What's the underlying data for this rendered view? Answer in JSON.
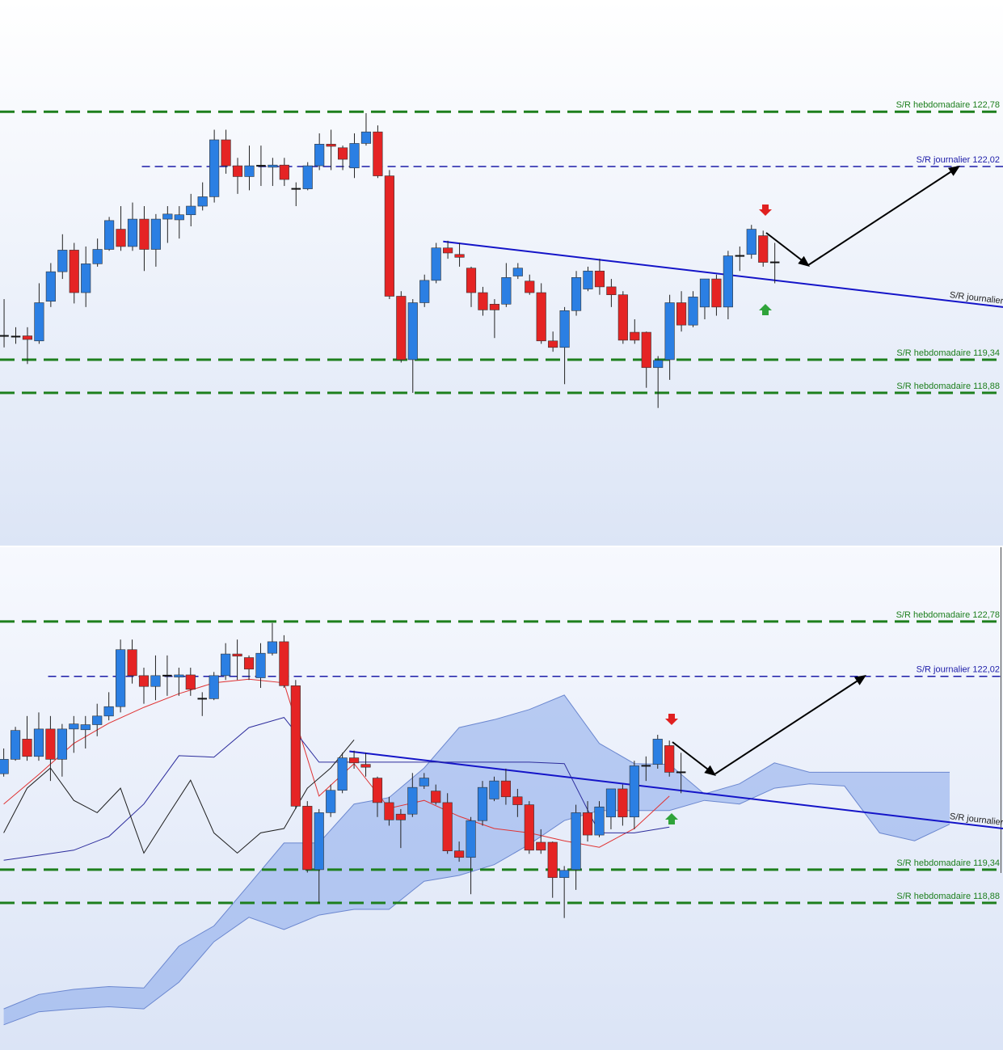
{
  "chart_data": [
    {
      "type": "candlestick",
      "x": [
        1,
        2,
        3,
        4,
        5,
        6,
        7,
        8,
        9,
        10,
        11,
        12,
        13,
        14,
        15,
        16,
        17,
        18,
        19,
        20,
        21,
        22,
        23,
        24,
        25,
        26,
        27,
        28,
        29,
        30,
        31,
        32,
        33,
        34,
        35,
        36,
        37,
        38,
        39,
        40,
        41,
        42,
        43,
        44,
        45,
        46,
        47,
        48,
        49,
        50,
        51,
        52,
        53,
        54,
        55,
        56,
        57,
        58,
        59,
        60,
        61,
        62,
        63,
        64,
        65,
        66,
        67
      ],
      "open": [
        119.67,
        119.66,
        119.67,
        119.6,
        120.15,
        120.56,
        120.86,
        120.27,
        120.67,
        120.87,
        121.15,
        120.91,
        121.29,
        120.87,
        121.29,
        121.28,
        121.35,
        121.47,
        121.6,
        122.39,
        122.03,
        121.88,
        122.03,
        122.01,
        122.04,
        121.71,
        121.71,
        122.03,
        122.33,
        122.28,
        122.0,
        122.34,
        122.5,
        121.89,
        120.22,
        119.34,
        120.13,
        120.44,
        120.89,
        120.8,
        120.61,
        120.27,
        120.11,
        120.11,
        120.5,
        120.43,
        120.27,
        119.6,
        119.51,
        120.02,
        120.32,
        120.57,
        120.35,
        120.24,
        119.72,
        119.72,
        119.23,
        119.34,
        120.13,
        119.82,
        120.07,
        120.46,
        120.07,
        120.78,
        120.8,
        121.06,
        120.69
      ],
      "high": [
        120.18,
        119.79,
        119.79,
        120.4,
        120.68,
        121.08,
        120.96,
        120.91,
        121.02,
        121.32,
        121.47,
        121.52,
        121.47,
        121.36,
        121.47,
        121.47,
        121.64,
        121.8,
        122.53,
        122.53,
        122.14,
        122.31,
        122.31,
        122.14,
        122.14,
        121.8,
        122.08,
        122.48,
        122.53,
        122.31,
        122.48,
        122.76,
        122.59,
        121.97,
        120.29,
        120.18,
        120.52,
        120.96,
        120.99,
        120.96,
        120.63,
        120.35,
        120.18,
        120.68,
        120.68,
        120.52,
        120.4,
        119.73,
        120.07,
        120.57,
        120.63,
        120.74,
        120.46,
        120.29,
        119.9,
        119.73,
        119.39,
        120.24,
        120.29,
        120.29,
        120.46,
        120.52,
        120.85,
        120.91,
        121.21,
        121.13,
        120.96
      ],
      "low": [
        119.51,
        119.56,
        119.28,
        119.56,
        120.07,
        120.46,
        120.12,
        120.07,
        120.63,
        120.85,
        120.85,
        120.85,
        120.57,
        120.63,
        120.96,
        121.02,
        121.19,
        121.41,
        121.52,
        121.92,
        121.64,
        121.69,
        121.75,
        121.75,
        121.75,
        121.47,
        121.69,
        121.97,
        121.97,
        121.97,
        121.86,
        122.31,
        121.86,
        120.18,
        119.3,
        118.88,
        120.07,
        120.4,
        120.74,
        120.63,
        120.07,
        119.95,
        119.64,
        120.07,
        120.46,
        120.24,
        119.56,
        119.45,
        119.0,
        119.95,
        120.29,
        120.24,
        120.07,
        119.56,
        119.56,
        118.95,
        118.67,
        119.06,
        119.73,
        119.79,
        119.9,
        119.95,
        119.9,
        120.57,
        120.74,
        120.63,
        120.4
      ],
      "close": [
        119.67,
        119.66,
        119.62,
        120.13,
        120.56,
        120.86,
        120.27,
        120.67,
        120.87,
        121.27,
        120.91,
        121.29,
        120.87,
        121.29,
        121.36,
        121.35,
        121.47,
        121.6,
        122.39,
        122.03,
        121.88,
        122.03,
        122.03,
        122.04,
        121.84,
        121.71,
        122.03,
        122.33,
        122.3,
        122.12,
        122.34,
        122.5,
        121.89,
        120.22,
        119.34,
        120.13,
        120.44,
        120.89,
        120.82,
        120.76,
        120.27,
        120.03,
        120.03,
        120.48,
        120.61,
        120.27,
        119.6,
        119.51,
        120.02,
        120.48,
        120.57,
        120.35,
        120.24,
        119.61,
        119.61,
        119.23,
        119.33,
        120.13,
        119.82,
        120.21,
        120.46,
        120.07,
        120.78,
        120.78,
        121.15,
        120.69,
        120.69
      ],
      "up_color": "#2b7fe3",
      "down_color": "#e52424",
      "xlim": [
        0.65,
        86.54
      ],
      "ylim": [
        116.76,
        124.33
      ],
      "levels": [
        {
          "value": 122.78,
          "label": "S/R hebdomadaire 122,78",
          "color": "#1d7f1d",
          "style": "heavy-dashed"
        },
        {
          "value": 122.02,
          "label": "S/R journalier 122,02",
          "color": "#1c1ca8",
          "style": "dashed",
          "from": 12.8
        },
        {
          "value": 119.34,
          "label": "S/R hebdomadaire 119,34",
          "color": "#1d7f1d",
          "style": "heavy-dashed"
        },
        {
          "value": 118.88,
          "label": "S/R hebdomadaire 118,88",
          "color": "#1d7f1d",
          "style": "heavy-dashed"
        }
      ],
      "trendline": {
        "label": "S/R journalier",
        "x": [
          38.6,
          86.54
        ],
        "values": [
          120.98,
          120.07
        ],
        "color": "#1414c8"
      }
    },
    {
      "type": "candlestick",
      "x": [
        9,
        10,
        11,
        12,
        13,
        14,
        15,
        16,
        17,
        18,
        19,
        20,
        21,
        22,
        23,
        24,
        25,
        26,
        27,
        28,
        29,
        30,
        31,
        32,
        33,
        34,
        35,
        36,
        37,
        38,
        39,
        40,
        41,
        42,
        43,
        44,
        45,
        46,
        47,
        48,
        49,
        50,
        51,
        52,
        53,
        54,
        55,
        56,
        57,
        58,
        59,
        60,
        61,
        62,
        63,
        64,
        65,
        66,
        67
      ],
      "open": [
        120.67,
        120.87,
        121.15,
        120.91,
        121.29,
        120.87,
        121.29,
        121.28,
        121.35,
        121.47,
        121.6,
        122.39,
        122.03,
        121.88,
        122.03,
        122.01,
        122.04,
        121.71,
        121.71,
        122.03,
        122.33,
        122.28,
        122.0,
        122.34,
        122.5,
        121.89,
        120.22,
        119.34,
        120.13,
        120.44,
        120.89,
        120.8,
        120.61,
        120.27,
        120.11,
        120.11,
        120.5,
        120.43,
        120.27,
        119.6,
        119.51,
        120.02,
        120.32,
        120.57,
        120.35,
        120.24,
        119.72,
        119.72,
        119.23,
        119.34,
        120.13,
        119.82,
        120.07,
        120.46,
        120.07,
        120.78,
        120.8,
        121.06,
        120.69
      ],
      "high": [
        121.02,
        121.32,
        121.47,
        121.52,
        121.47,
        121.36,
        121.47,
        121.47,
        121.64,
        121.8,
        122.53,
        122.53,
        122.14,
        122.31,
        122.31,
        122.14,
        122.14,
        121.8,
        122.08,
        122.48,
        122.53,
        122.31,
        122.48,
        122.76,
        122.59,
        121.97,
        120.29,
        120.18,
        120.52,
        120.96,
        120.99,
        120.96,
        120.63,
        120.35,
        120.18,
        120.68,
        120.68,
        120.52,
        120.4,
        119.73,
        120.07,
        120.57,
        120.63,
        120.74,
        120.46,
        120.29,
        119.9,
        119.73,
        119.39,
        120.24,
        120.29,
        120.29,
        120.46,
        120.52,
        120.85,
        120.91,
        121.21,
        121.13,
        120.96
      ],
      "low": [
        120.63,
        120.85,
        120.85,
        120.85,
        120.57,
        120.63,
        120.96,
        121.02,
        121.19,
        121.41,
        121.52,
        121.92,
        121.64,
        121.69,
        121.75,
        121.75,
        121.75,
        121.47,
        121.69,
        121.97,
        121.97,
        121.97,
        121.86,
        122.31,
        121.86,
        120.18,
        119.3,
        118.88,
        120.07,
        120.4,
        120.74,
        120.63,
        120.07,
        119.95,
        119.64,
        120.07,
        120.46,
        120.24,
        119.56,
        119.45,
        119.0,
        119.95,
        120.29,
        120.24,
        120.07,
        119.56,
        119.56,
        118.95,
        118.67,
        119.06,
        119.73,
        119.79,
        119.9,
        119.95,
        119.9,
        120.57,
        120.74,
        120.63,
        120.4
      ],
      "close": [
        120.87,
        121.27,
        120.91,
        121.29,
        120.87,
        121.29,
        121.36,
        121.35,
        121.47,
        121.6,
        122.39,
        122.03,
        121.88,
        122.03,
        122.03,
        122.04,
        121.84,
        121.71,
        122.03,
        122.33,
        122.3,
        122.12,
        122.34,
        122.5,
        121.89,
        120.22,
        119.34,
        120.13,
        120.44,
        120.89,
        120.82,
        120.76,
        120.27,
        120.03,
        120.03,
        120.48,
        120.61,
        120.27,
        119.6,
        119.51,
        120.02,
        120.48,
        120.57,
        120.35,
        120.24,
        119.61,
        119.61,
        119.23,
        119.33,
        120.13,
        119.82,
        120.21,
        120.46,
        120.07,
        120.78,
        120.78,
        121.15,
        120.69,
        120.69
      ],
      "up_color": "#2b7fe3",
      "down_color": "#e52424",
      "xlim": [
        8.68,
        94.57
      ],
      "ylim": [
        116.84,
        123.81
      ],
      "cloud": {
        "x": [
          9,
          12,
          15,
          18,
          21,
          24,
          27,
          30,
          33,
          36,
          39,
          42,
          45,
          48,
          51,
          54,
          57,
          60,
          63,
          66,
          69,
          72,
          75,
          78,
          81,
          84,
          87,
          90
        ],
        "upper": [
          117.41,
          117.61,
          117.68,
          117.72,
          117.7,
          118.28,
          118.56,
          119.13,
          119.71,
          119.71,
          120.25,
          120.34,
          120.75,
          121.31,
          121.42,
          121.56,
          121.76,
          121.09,
          120.81,
          120.8,
          120.39,
          120.53,
          120.82,
          120.69,
          120.69,
          120.69,
          120.69,
          120.69
        ],
        "lower": [
          117.19,
          117.37,
          117.41,
          117.44,
          117.41,
          117.78,
          118.34,
          118.68,
          118.51,
          118.71,
          118.79,
          118.79,
          119.18,
          119.26,
          119.41,
          119.69,
          120.02,
          120.16,
          120.16,
          120.16,
          120.3,
          120.25,
          120.47,
          120.53,
          120.5,
          119.85,
          119.74,
          119.97
        ],
        "color": "#7fa2ea",
        "edge_color": "#6b87cf"
      },
      "series": [
        {
          "color": "#e03232",
          "x": [
            9,
            12,
            15,
            18,
            21,
            24,
            27,
            30,
            33,
            36,
            39,
            42,
            45,
            48,
            51,
            54,
            57,
            60,
            63,
            66
          ],
          "values": [
            120.25,
            120.66,
            121.09,
            121.37,
            121.59,
            121.78,
            121.93,
            121.98,
            121.93,
            120.36,
            120.81,
            120.19,
            120.3,
            120.08,
            119.91,
            119.85,
            119.74,
            119.65,
            119.91,
            120.36
          ]
        },
        {
          "color": "#2c2c9c",
          "x": [
            9,
            12,
            15,
            18,
            21,
            24,
            27,
            30,
            33,
            36,
            39,
            42,
            45,
            48,
            51,
            54,
            57,
            60,
            63,
            66
          ],
          "values": [
            119.47,
            119.54,
            119.61,
            119.8,
            120.25,
            120.92,
            120.9,
            121.31,
            121.45,
            120.83,
            120.83,
            120.83,
            120.83,
            120.83,
            120.83,
            120.83,
            120.81,
            119.85,
            119.85,
            119.93
          ]
        },
        {
          "color": "#1e1e1e",
          "x": [
            9,
            11,
            13,
            15,
            17,
            19,
            21,
            23,
            25,
            27,
            29,
            31,
            33,
            35,
            37,
            39
          ],
          "values": [
            119.85,
            120.47,
            120.75,
            120.3,
            120.13,
            120.47,
            119.57,
            120.08,
            120.58,
            119.85,
            119.57,
            119.85,
            119.91,
            120.47,
            120.75,
            121.14
          ]
        }
      ],
      "levels": [
        {
          "value": 122.78,
          "label": "S/R hebdomadaire 122,78",
          "color": "#1d7f1d",
          "style": "heavy-dashed"
        },
        {
          "value": 122.02,
          "label": "S/R journalier 122,02",
          "color": "#1c1ca8",
          "style": "dashed",
          "from": 12.8
        },
        {
          "value": 119.34,
          "label": "S/R hebdomadaire 119,34",
          "color": "#1d7f1d",
          "style": "heavy-dashed"
        },
        {
          "value": 118.88,
          "label": "S/R hebdomadaire 118,88",
          "color": "#1d7f1d",
          "style": "heavy-dashed"
        }
      ],
      "trendline": {
        "label": "S/R journalier",
        "x": [
          38.6,
          94.57
        ],
        "values": [
          120.98,
          119.91
        ],
        "color": "#1414c8"
      }
    }
  ]
}
